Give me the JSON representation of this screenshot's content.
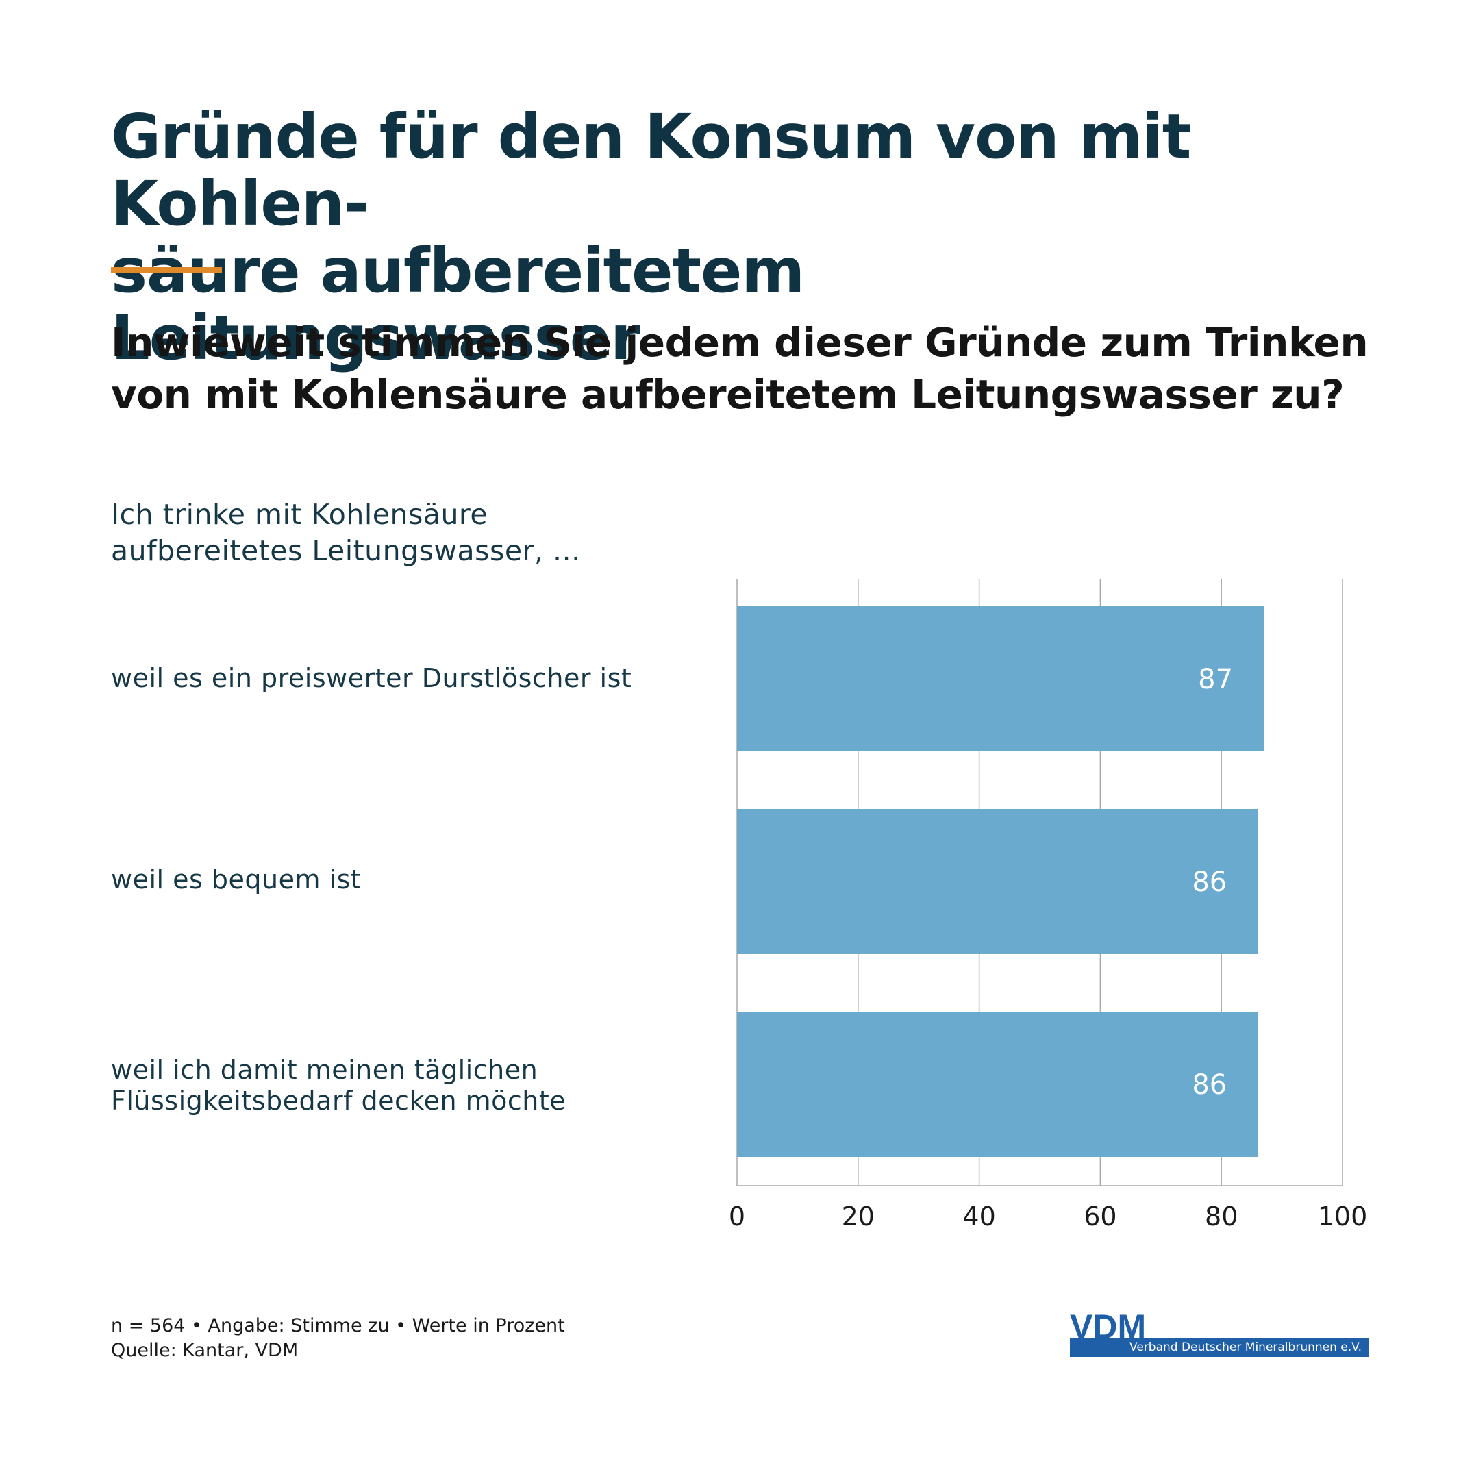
{
  "title": [
    "Gründe für den Konsum von mit Kohlen-",
    "säure aufbereitetem Leitungswasser"
  ],
  "subtitle": [
    "Inwieweit stimmen Sie jedem dieser Gründe zum Trinken",
    "von mit Kohlensäure aufbereitetem Leitungswasser zu?"
  ],
  "intro": [
    "Ich trinke mit Kohlensäure",
    "aufbereitetes Leitungswasser, ..."
  ],
  "colors": {
    "title": "#0f3342",
    "accent": "#e08a2a",
    "bar": "#6aaacf",
    "bar_label": "#ffffff",
    "grid": "#a9a9a9",
    "logo": "#1f5fa8"
  },
  "chart_data": {
    "type": "bar",
    "orientation": "horizontal",
    "categories": [
      [
        "weil es ein preiswerter Durstlöscher ist"
      ],
      [
        "weil es bequem ist"
      ],
      [
        "weil ich damit meinen täglichen",
        "Flüssigkeitsbedarf decken möchte"
      ]
    ],
    "values": [
      87,
      86,
      86
    ],
    "value_labels": [
      "87",
      "86",
      "86"
    ],
    "xlim": [
      0,
      100
    ],
    "ticks": [
      0,
      20,
      40,
      60,
      80,
      100
    ],
    "tick_labels": [
      "0",
      "20",
      "40",
      "60",
      "80",
      "100"
    ],
    "grid": "vertical",
    "legend": "none"
  },
  "footnote": [
    "n = 564 • Angabe: Stimme zu • Werte in Prozent",
    "Quelle: Kantar, VDM"
  ],
  "logo": {
    "mark": "VDM",
    "sub": "Verband Deutscher Mineralbrunnen e.V."
  }
}
